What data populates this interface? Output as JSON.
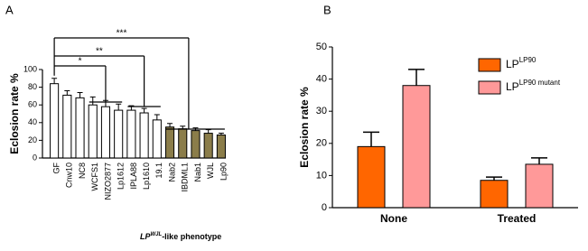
{
  "chart_data": [
    {
      "type": "bar",
      "panel": "A",
      "ylabel": "Eclosion rate %",
      "categories": [
        "GF",
        "Cnw10",
        "NC8",
        "WCFS1",
        "NIZO2877",
        "Lp1612",
        "IPLA88",
        "Lp1610",
        "19.1",
        "Nab2",
        "IBDML1",
        "Nab1",
        "WJL",
        "Lp90"
      ],
      "values": [
        84,
        71,
        68,
        60,
        58,
        54,
        54,
        51,
        43,
        35,
        33,
        31,
        28,
        26
      ],
      "errors": [
        6,
        5,
        6,
        9,
        7,
        7,
        5,
        5,
        6,
        4,
        3,
        3,
        4,
        2
      ],
      "colors": [
        "#ffffff",
        "#ffffff",
        "#ffffff",
        "#ffffff",
        "#ffffff",
        "#ffffff",
        "#ffffff",
        "#ffffff",
        "#ffffff",
        "#8b7d4a",
        "#8b7d4a",
        "#8b7d4a",
        "#8b7d4a",
        "#8b7d4a"
      ],
      "ylim": [
        0,
        100
      ],
      "yticks": [
        0,
        20,
        40,
        60,
        80,
        100
      ],
      "significance": [
        "*",
        "**",
        "***"
      ],
      "footnote": {
        "base": "LP",
        "sup": "WJL",
        "rest": "-like phenotype"
      }
    },
    {
      "type": "grouped_bar",
      "panel": "B",
      "ylabel": "Eclosion rate %",
      "categories": [
        "None",
        "Treated"
      ],
      "series": [
        {
          "name": "LP",
          "sup": "LP90",
          "color": "#ff6600",
          "values": [
            19,
            8.5
          ],
          "errors": [
            4.5,
            1
          ]
        },
        {
          "name": "LP",
          "sup": "LP90 mutant",
          "color": "#ff9999",
          "values": [
            38,
            13.5
          ],
          "errors": [
            5,
            2
          ]
        }
      ],
      "ylim": [
        0,
        50
      ],
      "yticks": [
        0,
        10,
        20,
        30,
        40,
        50
      ],
      "legend": "upper right"
    }
  ]
}
